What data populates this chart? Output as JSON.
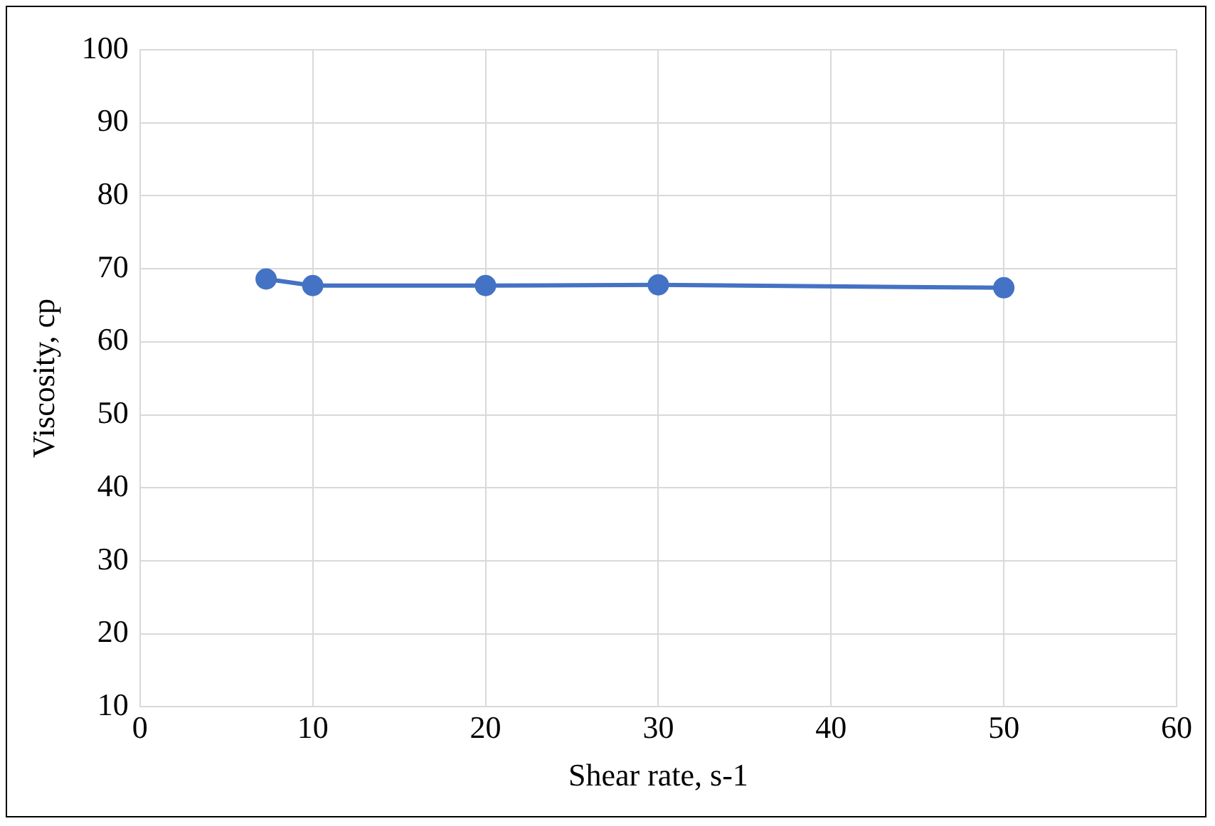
{
  "chart_data": {
    "type": "line",
    "xlabel": "Shear rate, s-1",
    "ylabel": "Viscosity, cp",
    "x": [
      7.3,
      10,
      20,
      30,
      50
    ],
    "series": [
      {
        "color": "#4472c4",
        "values": [
          68.6,
          67.7,
          67.7,
          67.8,
          67.4
        ]
      }
    ],
    "xlim": [
      0,
      60
    ],
    "xticks": [
      0,
      10,
      20,
      30,
      40,
      50,
      60
    ],
    "ylim": [
      10,
      100
    ],
    "yticks": [
      10,
      20,
      30,
      40,
      50,
      60,
      70,
      80,
      90,
      100
    ],
    "grid": true,
    "legend": false,
    "marker": "circle",
    "line_style": "solid"
  }
}
